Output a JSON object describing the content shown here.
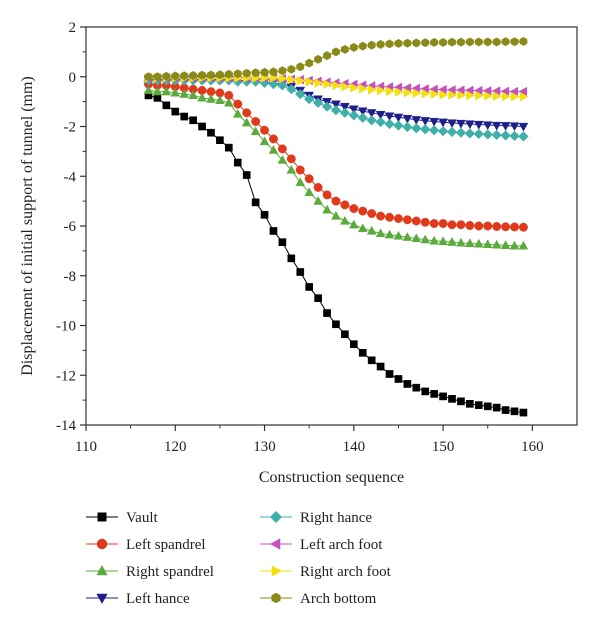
{
  "chart_data": {
    "type": "line",
    "xlabel": "Construction sequence",
    "ylabel": "Displacement of initial support of tunnel (mm)",
    "xlim": [
      110,
      165
    ],
    "ylim": [
      -14,
      2
    ],
    "xticks": [
      110,
      120,
      130,
      140,
      150,
      160
    ],
    "yticks": [
      -14,
      -12,
      -10,
      -8,
      -6,
      -4,
      -2,
      0,
      2
    ],
    "grid": false,
    "legend_position": "bottom",
    "x": [
      117,
      118,
      119,
      120,
      121,
      122,
      123,
      124,
      125,
      126,
      127,
      128,
      129,
      130,
      131,
      132,
      133,
      134,
      135,
      136,
      137,
      138,
      139,
      140,
      141,
      142,
      143,
      144,
      145,
      146,
      147,
      148,
      149,
      150,
      151,
      152,
      153,
      154,
      155,
      156,
      157,
      158,
      159
    ],
    "series": [
      {
        "name": "Vault",
        "color": "#000000",
        "marker": "square",
        "values": [
          -0.75,
          -0.85,
          -1.15,
          -1.4,
          -1.6,
          -1.75,
          -2.0,
          -2.25,
          -2.55,
          -2.85,
          -3.45,
          -3.95,
          -5.05,
          -5.55,
          -6.2,
          -6.65,
          -7.3,
          -7.85,
          -8.45,
          -8.9,
          -9.5,
          -9.95,
          -10.35,
          -10.75,
          -11.1,
          -11.4,
          -11.65,
          -11.95,
          -12.15,
          -12.35,
          -12.5,
          -12.65,
          -12.75,
          -12.85,
          -12.95,
          -13.05,
          -13.15,
          -13.2,
          -13.25,
          -13.3,
          -13.4,
          -13.45,
          -13.5
        ]
      },
      {
        "name": "Left spandrel",
        "color": "#e0391c",
        "marker": "circle",
        "values": [
          -0.3,
          -0.35,
          -0.35,
          -0.4,
          -0.45,
          -0.5,
          -0.55,
          -0.6,
          -0.65,
          -0.75,
          -1.1,
          -1.45,
          -1.8,
          -2.15,
          -2.5,
          -2.9,
          -3.3,
          -3.75,
          -4.1,
          -4.45,
          -4.75,
          -5.0,
          -5.15,
          -5.3,
          -5.4,
          -5.5,
          -5.6,
          -5.65,
          -5.7,
          -5.75,
          -5.8,
          -5.85,
          -5.9,
          -5.9,
          -5.95,
          -5.95,
          -5.98,
          -6.0,
          -6.0,
          -6.02,
          -6.03,
          -6.04,
          -6.05
        ]
      },
      {
        "name": "Right spandrel",
        "color": "#5aaa3c",
        "marker": "triangle-up",
        "values": [
          -0.55,
          -0.6,
          -0.6,
          -0.65,
          -0.7,
          -0.75,
          -0.85,
          -0.9,
          -0.95,
          -1.05,
          -1.5,
          -1.85,
          -2.2,
          -2.6,
          -2.95,
          -3.35,
          -3.75,
          -4.25,
          -4.65,
          -5.0,
          -5.35,
          -5.6,
          -5.8,
          -5.95,
          -6.1,
          -6.2,
          -6.3,
          -6.35,
          -6.4,
          -6.45,
          -6.5,
          -6.55,
          -6.6,
          -6.62,
          -6.65,
          -6.68,
          -6.7,
          -6.72,
          -6.74,
          -6.76,
          -6.78,
          -6.8,
          -6.8
        ]
      },
      {
        "name": "Left hance",
        "color": "#1f1f8c",
        "marker": "triangle-down",
        "values": [
          -0.1,
          -0.1,
          -0.1,
          -0.1,
          -0.1,
          -0.1,
          -0.1,
          -0.1,
          -0.1,
          -0.1,
          -0.15,
          -0.15,
          -0.2,
          -0.2,
          -0.25,
          -0.3,
          -0.4,
          -0.55,
          -0.75,
          -0.9,
          -1.0,
          -1.1,
          -1.2,
          -1.3,
          -1.38,
          -1.45,
          -1.52,
          -1.58,
          -1.63,
          -1.68,
          -1.73,
          -1.77,
          -1.8,
          -1.83,
          -1.86,
          -1.88,
          -1.9,
          -1.92,
          -1.94,
          -1.96,
          -1.97,
          -1.98,
          -2.0
        ]
      },
      {
        "name": "Right hance",
        "color": "#3fb0a8",
        "marker": "diamond",
        "values": [
          -0.15,
          -0.15,
          -0.15,
          -0.15,
          -0.15,
          -0.15,
          -0.15,
          -0.15,
          -0.15,
          -0.15,
          -0.2,
          -0.2,
          -0.2,
          -0.25,
          -0.3,
          -0.35,
          -0.5,
          -0.7,
          -0.9,
          -1.05,
          -1.2,
          -1.35,
          -1.45,
          -1.55,
          -1.65,
          -1.75,
          -1.82,
          -1.9,
          -1.96,
          -2.02,
          -2.07,
          -2.11,
          -2.15,
          -2.19,
          -2.22,
          -2.25,
          -2.28,
          -2.3,
          -2.32,
          -2.34,
          -2.36,
          -2.38,
          -2.4
        ]
      },
      {
        "name": "Left arch foot",
        "color": "#c44fbf",
        "marker": "triangle-left",
        "values": [
          -0.05,
          -0.05,
          -0.05,
          -0.05,
          -0.05,
          -0.05,
          -0.05,
          -0.05,
          -0.05,
          -0.05,
          -0.05,
          -0.05,
          -0.05,
          -0.05,
          -0.05,
          -0.08,
          -0.1,
          -0.12,
          -0.15,
          -0.18,
          -0.22,
          -0.25,
          -0.28,
          -0.31,
          -0.34,
          -0.37,
          -0.39,
          -0.41,
          -0.43,
          -0.45,
          -0.47,
          -0.49,
          -0.51,
          -0.52,
          -0.53,
          -0.54,
          -0.55,
          -0.56,
          -0.57,
          -0.58,
          -0.59,
          -0.6,
          -0.6
        ]
      },
      {
        "name": "Right arch foot",
        "color": "#f5e00f",
        "marker": "triangle-right",
        "values": [
          -0.05,
          -0.05,
          -0.05,
          -0.05,
          -0.05,
          -0.05,
          -0.05,
          -0.05,
          -0.05,
          -0.05,
          -0.05,
          -0.05,
          -0.05,
          -0.05,
          -0.05,
          -0.08,
          -0.12,
          -0.16,
          -0.2,
          -0.25,
          -0.3,
          -0.35,
          -0.4,
          -0.44,
          -0.48,
          -0.52,
          -0.55,
          -0.58,
          -0.61,
          -0.64,
          -0.66,
          -0.68,
          -0.7,
          -0.72,
          -0.73,
          -0.74,
          -0.75,
          -0.76,
          -0.77,
          -0.78,
          -0.79,
          -0.8,
          -0.8
        ]
      },
      {
        "name": "Arch bottom",
        "color": "#8a8a18",
        "marker": "hexagon",
        "values": [
          0.0,
          0.0,
          0.02,
          0.03,
          0.04,
          0.05,
          0.06,
          0.07,
          0.08,
          0.1,
          0.12,
          0.14,
          0.16,
          0.18,
          0.2,
          0.24,
          0.3,
          0.4,
          0.55,
          0.7,
          0.85,
          1.0,
          1.1,
          1.18,
          1.23,
          1.27,
          1.3,
          1.32,
          1.34,
          1.35,
          1.36,
          1.37,
          1.38,
          1.38,
          1.39,
          1.39,
          1.4,
          1.4,
          1.4,
          1.4,
          1.41,
          1.41,
          1.42
        ]
      }
    ]
  }
}
